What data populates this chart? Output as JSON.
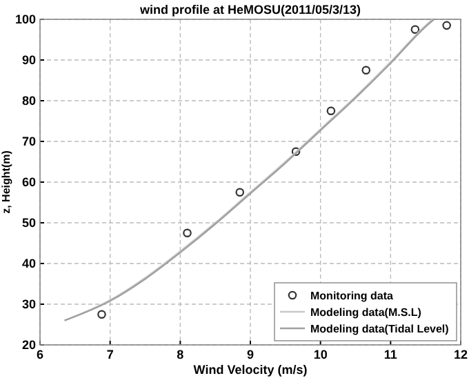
{
  "chart_data": {
    "type": "scatter",
    "title": "wind profile at HeMOSU(2011/05/3/13)",
    "xlabel": "Wind Velocity (m/s)",
    "ylabel": "z, Height(m)",
    "xlim": [
      6,
      12
    ],
    "ylim": [
      20,
      100
    ],
    "xticks": [
      6,
      7,
      8,
      9,
      10,
      11,
      12
    ],
    "yticks": [
      20,
      30,
      40,
      50,
      60,
      70,
      80,
      90,
      100
    ],
    "grid": true,
    "legend": "bottom right",
    "series": [
      {
        "name": "Monitoring data",
        "marker": "circle",
        "color": "#333333",
        "x": [
          6.88,
          8.1,
          8.85,
          9.65,
          10.15,
          10.65,
          11.35,
          11.8
        ],
        "values": [
          27.5,
          47.5,
          57.5,
          67.5,
          77.5,
          87.5,
          97.5,
          98.5
        ]
      },
      {
        "name": "Modeling data(M.S.L)",
        "type": "line",
        "color": "#c8c8c8",
        "marker": "none",
        "x": [
          6.35,
          7,
          7.5,
          8,
          8.5,
          9,
          9.5,
          10,
          10.5,
          11,
          11.5,
          11.6
        ],
        "values": [
          26,
          31,
          36.5,
          43,
          50,
          57.5,
          65,
          73,
          81,
          89.5,
          98.5,
          100
        ]
      },
      {
        "name": "Modeling data(Tidal Level)",
        "type": "line",
        "color": "#a0a0a0",
        "marker": "none",
        "x": [
          6.35,
          7,
          7.5,
          8,
          8.5,
          9,
          9.5,
          10,
          10.5,
          11,
          11.5,
          11.62
        ],
        "values": [
          26,
          30.8,
          36.2,
          42.7,
          49.7,
          57.2,
          64.7,
          72.7,
          80.7,
          89.2,
          98.2,
          100
        ]
      }
    ]
  }
}
